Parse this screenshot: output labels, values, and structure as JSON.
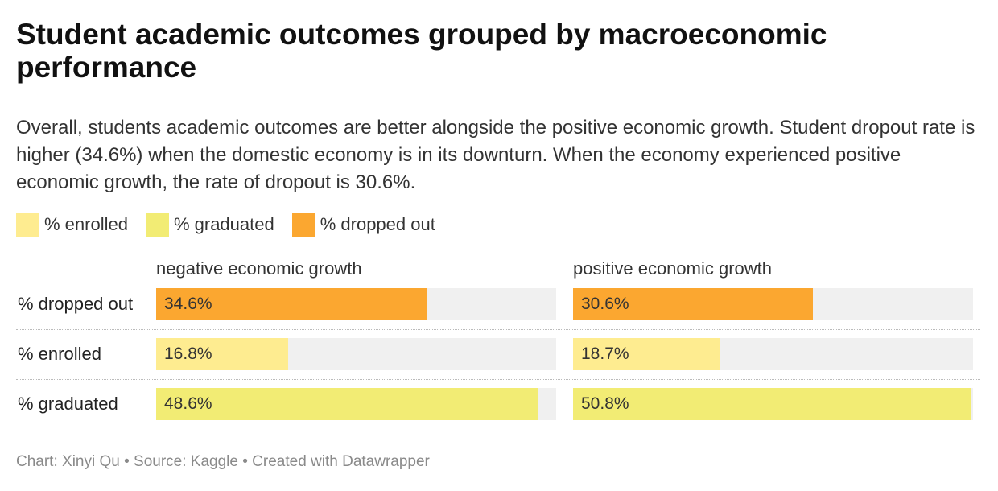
{
  "title": "Student academic outcomes grouped by macroeconomic performance",
  "subtitle": "Overall, students academic outcomes are better alongside the positive economic growth. Student dropout rate is higher (34.6%) when the domestic economy is in its downturn. When the economy experienced positive economic growth, the rate of dropout is 30.6%.",
  "footer": "Chart: Xinyi Qu • Source: Kaggle • Created with Datawrapper",
  "colors": {
    "dropped_out": "#fba730",
    "enrolled": "#feec90",
    "graduated": "#f2ec74",
    "track": "#f0f0f0"
  },
  "chart_data": {
    "type": "bar",
    "orientation": "horizontal",
    "categories": [
      "% dropped out",
      "% enrolled",
      "% graduated"
    ],
    "xlim": [
      0,
      51
    ],
    "legend": {
      "placement": "top-left",
      "entries": [
        {
          "name": "% enrolled",
          "color": "#feec90"
        },
        {
          "name": "% graduated",
          "color": "#f2ec74"
        },
        {
          "name": "% dropped out",
          "color": "#fba730"
        }
      ]
    },
    "series": [
      {
        "name": "negative economic growth",
        "values": [
          34.6,
          16.8,
          48.6
        ],
        "labels": [
          "34.6%",
          "16.8%",
          "48.6%"
        ]
      },
      {
        "name": "positive economic growth",
        "values": [
          30.6,
          18.7,
          50.8
        ],
        "labels": [
          "30.6%",
          "18.7%",
          "50.8%"
        ]
      }
    ]
  }
}
